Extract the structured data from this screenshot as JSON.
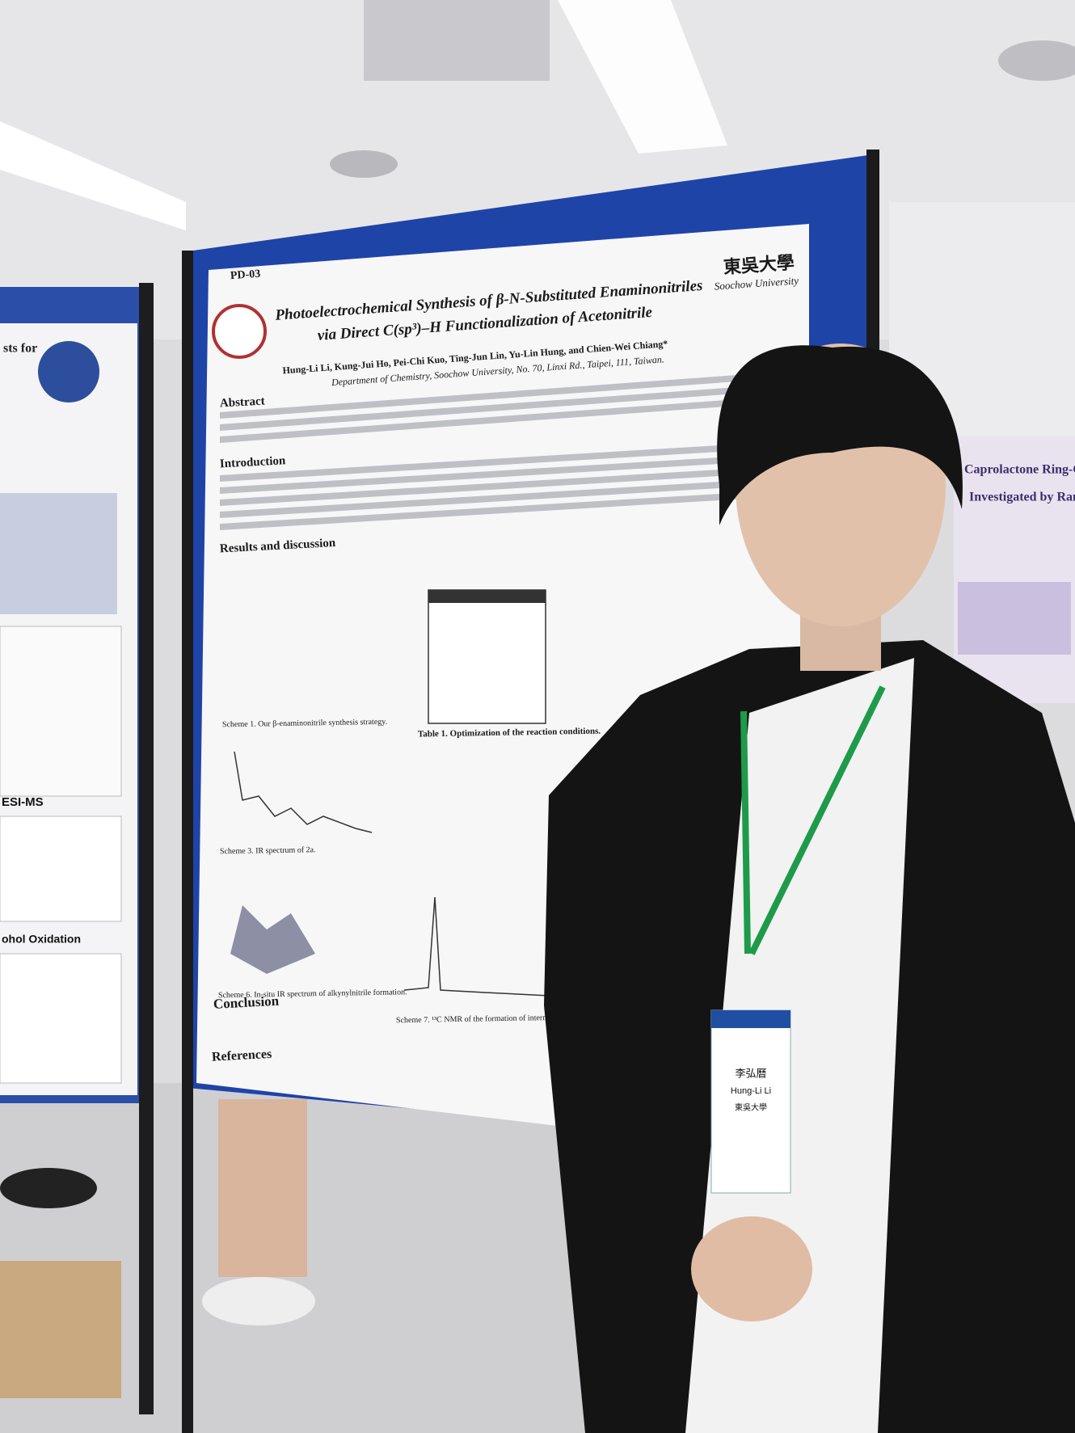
{
  "poster": {
    "code": "PD-03",
    "title": [
      "Photoelectrochemical Synthesis of β-N-Substituted Enaminonitriles",
      "via Direct C(sp³)–H Functionalization of Acetonitrile"
    ],
    "authors": "Hung-Li Li, Kung-Jui Ho, Pei-Chi Kuo, Ting-Jun Lin, Yu-Lin Hung, and Chien-Wei Chiang*",
    "affiliation": "Department of Chemistry, Soochow University, No. 70, Linxi Rd., Taipei, 111, Taiwan.",
    "university_cn": "東吳大學",
    "university_en": "Soochow University",
    "sections": [
      "Abstract",
      "Introduction",
      "Results and discussion",
      "Conclusion",
      "References"
    ],
    "captions": [
      "Scheme 1. Our β-enaminonitrile synthesis strategy.",
      "Table 1. Optimization of the reaction conditions.",
      "Scheme 3. IR spectrum of 2a.",
      "Scheme 6. In-situ IR spectrum of alkynylnitrile formation.",
      "Scheme 7. ¹³C NMR of the formation of intermediate."
    ]
  },
  "left_poster": {
    "headings": [
      "sts for",
      "ESI-MS",
      "ohol Oxidation"
    ]
  },
  "right_poster": {
    "title": [
      "Caprolactone Ring-Ope",
      "Investigated by Raman Sp"
    ]
  },
  "badge": {
    "name_cn": "李弘曆",
    "name_en": "Hung-Li Li",
    "school": "東吳大學"
  }
}
